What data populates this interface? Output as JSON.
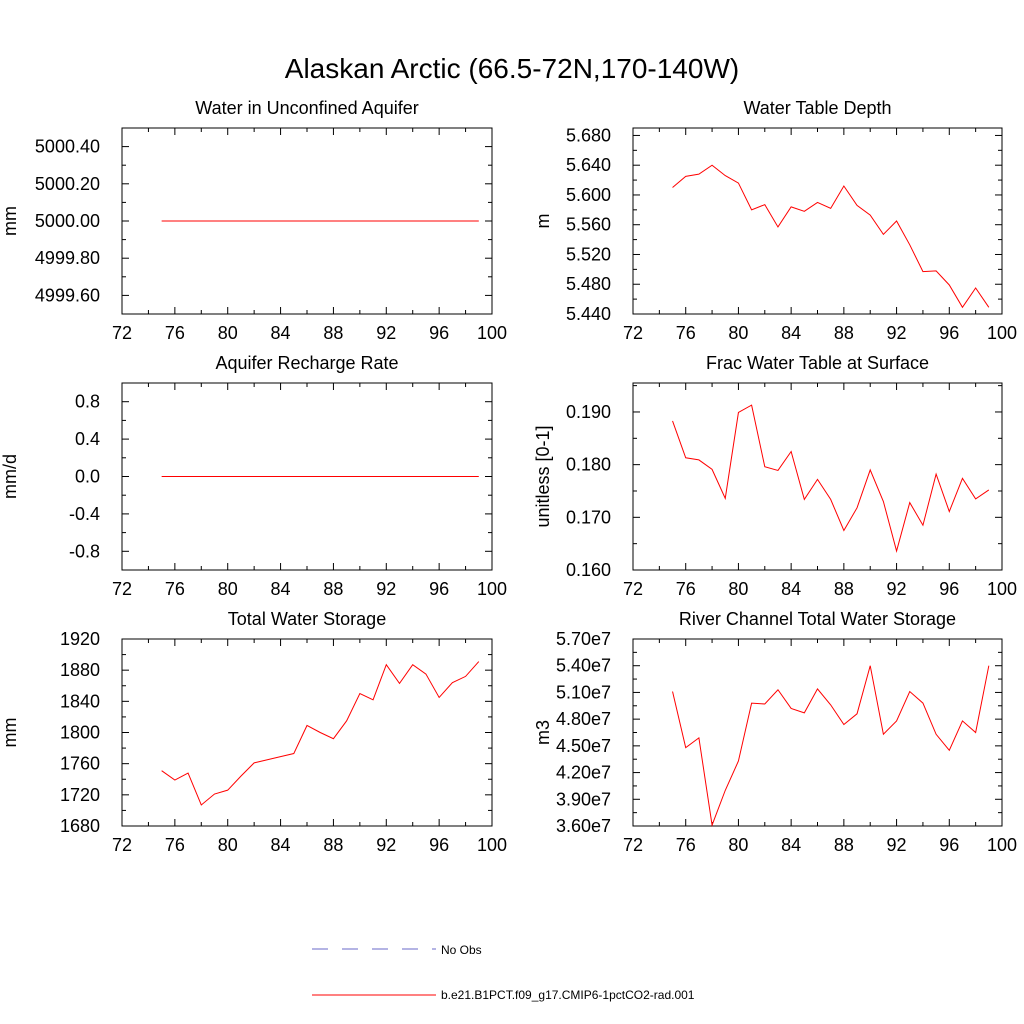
{
  "figure": {
    "title": "Alaskan Arctic (66.5-72N,170-140W)"
  },
  "colors": {
    "series": "#ff0000",
    "no_obs": "#6a6ac8",
    "axes": "#000000"
  },
  "legend": {
    "placement": "bottom-center",
    "entries": [
      {
        "label": "No Obs",
        "color": "#6a6ac8",
        "style": "dashed"
      },
      {
        "label": "b.e21.B1PCT.f09_g17.CMIP6-1pctCO2-rad.001",
        "color": "#ff0000",
        "style": "solid"
      }
    ]
  },
  "chart_data": [
    {
      "type": "line",
      "title": "Water in Unconfined Aquifer",
      "xlabel": "",
      "ylabel": "mm",
      "xlim": [
        72,
        100
      ],
      "ylim": [
        4999.5,
        5000.5
      ],
      "xticks": [
        72,
        76,
        80,
        84,
        88,
        92,
        96,
        100
      ],
      "xtick_labels": [
        "72",
        "76",
        "80",
        "84",
        "88",
        "92",
        "96",
        "100"
      ],
      "yticks": [
        4999.6,
        4999.8,
        5000.0,
        5000.2,
        5000.4
      ],
      "ytick_labels": [
        "4999.60",
        "4999.80",
        "5000.00",
        "5000.20",
        "5000.40"
      ],
      "grid": false,
      "series": [
        {
          "name": "b.e21.B1PCT.f09_g17.CMIP6-1pctCO2-rad.001",
          "x": [
            75,
            99
          ],
          "y": [
            5000.0,
            5000.0
          ]
        }
      ]
    },
    {
      "type": "line",
      "title": "Water Table Depth",
      "xlabel": "",
      "ylabel": "m",
      "xlim": [
        72,
        100
      ],
      "ylim": [
        5.44,
        5.69
      ],
      "xticks": [
        72,
        76,
        80,
        84,
        88,
        92,
        96,
        100
      ],
      "xtick_labels": [
        "72",
        "76",
        "80",
        "84",
        "88",
        "92",
        "96",
        "100"
      ],
      "yticks": [
        5.44,
        5.48,
        5.52,
        5.56,
        5.6,
        5.64,
        5.68
      ],
      "ytick_labels": [
        "5.440",
        "5.480",
        "5.520",
        "5.560",
        "5.600",
        "5.640",
        "5.680"
      ],
      "grid": false,
      "series": [
        {
          "name": "b.e21.B1PCT.f09_g17.CMIP6-1pctCO2-rad.001",
          "x": [
            75,
            76,
            77,
            78,
            79,
            80,
            81,
            82,
            83,
            84,
            85,
            86,
            87,
            88,
            89,
            90,
            91,
            92,
            93,
            94,
            95,
            96,
            97,
            98,
            99
          ],
          "y": [
            5.61,
            5.625,
            5.628,
            5.64,
            5.626,
            5.616,
            5.58,
            5.587,
            5.557,
            5.584,
            5.578,
            5.59,
            5.582,
            5.612,
            5.586,
            5.573,
            5.547,
            5.565,
            5.533,
            5.497,
            5.498,
            5.479,
            5.449,
            5.475,
            5.449
          ]
        }
      ]
    },
    {
      "type": "line",
      "title": "Aquifer Recharge Rate",
      "xlabel": "",
      "ylabel": "mm/d",
      "xlim": [
        72,
        100
      ],
      "ylim": [
        -1.0,
        1.0
      ],
      "xticks": [
        72,
        76,
        80,
        84,
        88,
        92,
        96,
        100
      ],
      "xtick_labels": [
        "72",
        "76",
        "80",
        "84",
        "88",
        "92",
        "96",
        "100"
      ],
      "yticks": [
        -0.8,
        -0.4,
        0.0,
        0.4,
        0.8
      ],
      "ytick_labels": [
        "-0.8",
        "-0.4",
        "0.0",
        "0.4",
        "0.8"
      ],
      "grid": false,
      "series": [
        {
          "name": "b.e21.B1PCT.f09_g17.CMIP6-1pctCO2-rad.001",
          "x": [
            75,
            99
          ],
          "y": [
            0.0,
            0.0
          ]
        }
      ]
    },
    {
      "type": "line",
      "title": "Frac Water Table at Surface",
      "xlabel": "",
      "ylabel": "unitless [0-1]",
      "xlim": [
        72,
        100
      ],
      "ylim": [
        0.16,
        0.1955
      ],
      "xticks": [
        72,
        76,
        80,
        84,
        88,
        92,
        96,
        100
      ],
      "xtick_labels": [
        "72",
        "76",
        "80",
        "84",
        "88",
        "92",
        "96",
        "100"
      ],
      "yticks": [
        0.16,
        0.17,
        0.18,
        0.19
      ],
      "ytick_labels": [
        "0.160",
        "0.170",
        "0.180",
        "0.190"
      ],
      "grid": false,
      "series": [
        {
          "name": "b.e21.B1PCT.f09_g17.CMIP6-1pctCO2-rad.001",
          "x": [
            75,
            76,
            77,
            78,
            79,
            80,
            81,
            82,
            83,
            84,
            85,
            86,
            87,
            88,
            89,
            90,
            91,
            92,
            93,
            94,
            95,
            96,
            97,
            98,
            99
          ],
          "y": [
            0.1883,
            0.1813,
            0.1809,
            0.1791,
            0.1736,
            0.1899,
            0.1913,
            0.1796,
            0.1789,
            0.1825,
            0.1734,
            0.1772,
            0.1734,
            0.1675,
            0.1718,
            0.179,
            0.173,
            0.1636,
            0.1728,
            0.1685,
            0.1782,
            0.1711,
            0.1774,
            0.1735,
            0.1752
          ]
        }
      ]
    },
    {
      "type": "line",
      "title": "Total Water Storage",
      "xlabel": "",
      "ylabel": "mm",
      "xlim": [
        72,
        100
      ],
      "ylim": [
        1680,
        1920
      ],
      "xticks": [
        72,
        76,
        80,
        84,
        88,
        92,
        96,
        100
      ],
      "xtick_labels": [
        "72",
        "76",
        "80",
        "84",
        "88",
        "92",
        "96",
        "100"
      ],
      "yticks": [
        1680,
        1720,
        1760,
        1800,
        1840,
        1880,
        1920
      ],
      "ytick_labels": [
        "1680",
        "1720",
        "1760",
        "1800",
        "1840",
        "1880",
        "1920"
      ],
      "grid": false,
      "series": [
        {
          "name": "b.e21.B1PCT.f09_g17.CMIP6-1pctCO2-rad.001",
          "x": [
            75,
            76,
            77,
            78,
            79,
            80,
            81,
            82,
            83,
            84,
            85,
            86,
            87,
            88,
            89,
            90,
            91,
            92,
            93,
            94,
            95,
            96,
            97,
            98,
            99
          ],
          "y": [
            1751,
            1739,
            1748,
            1707,
            1721,
            1726,
            1744,
            1761,
            1765,
            1769,
            1773,
            1809,
            1800,
            1792,
            1815,
            1850,
            1842,
            1887,
            1863,
            1887,
            1875,
            1845,
            1864,
            1872,
            1891
          ]
        }
      ]
    },
    {
      "type": "line",
      "title": "River Channel Total Water Storage",
      "xlabel": "",
      "ylabel": "m3",
      "xlim": [
        72,
        100
      ],
      "ylim": [
        36000000,
        57000000
      ],
      "xticks": [
        72,
        76,
        80,
        84,
        88,
        92,
        96,
        100
      ],
      "xtick_labels": [
        "72",
        "76",
        "80",
        "84",
        "88",
        "92",
        "96",
        "100"
      ],
      "yticks": [
        36000000,
        39000000,
        42000000,
        45000000,
        48000000,
        51000000,
        54000000,
        57000000
      ],
      "ytick_labels": [
        "3.60e7",
        "3.90e7",
        "4.20e7",
        "4.50e7",
        "4.80e7",
        "5.10e7",
        "5.40e7",
        "5.70e7"
      ],
      "grid": false,
      "series": [
        {
          "name": "b.e21.B1PCT.f09_g17.CMIP6-1pctCO2-rad.001",
          "x": [
            75,
            76,
            77,
            78,
            79,
            80,
            81,
            82,
            83,
            84,
            85,
            86,
            87,
            88,
            89,
            90,
            91,
            92,
            93,
            94,
            95,
            96,
            97,
            98,
            99
          ],
          "y": [
            51100000,
            44800000,
            45900000,
            36100000,
            40000000,
            43300000,
            49800000,
            49700000,
            51300000,
            49200000,
            48700000,
            51400000,
            49600000,
            47400000,
            48600000,
            54000000,
            46300000,
            47800000,
            51100000,
            49800000,
            46300000,
            44500000,
            47800000,
            46500000,
            54000000
          ]
        }
      ]
    }
  ]
}
